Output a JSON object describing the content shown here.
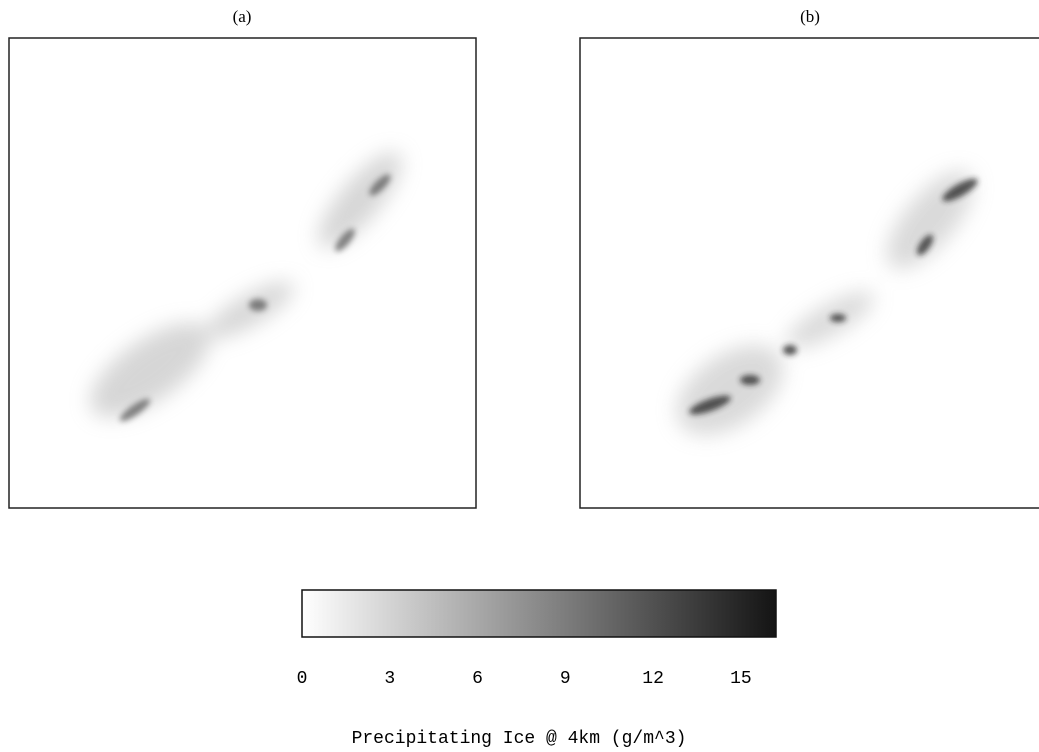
{
  "chart_data": {
    "type": "colorbar",
    "panels": [
      "(a)",
      "(b)"
    ],
    "xlim": [
      0,
      16.2
    ],
    "xticks": [
      0,
      3,
      6,
      9,
      12,
      15
    ],
    "colors": [
      "#ffffff",
      "#141414"
    ],
    "xlabel": "Precipitating Ice @ 4km (g/m^3)"
  }
}
